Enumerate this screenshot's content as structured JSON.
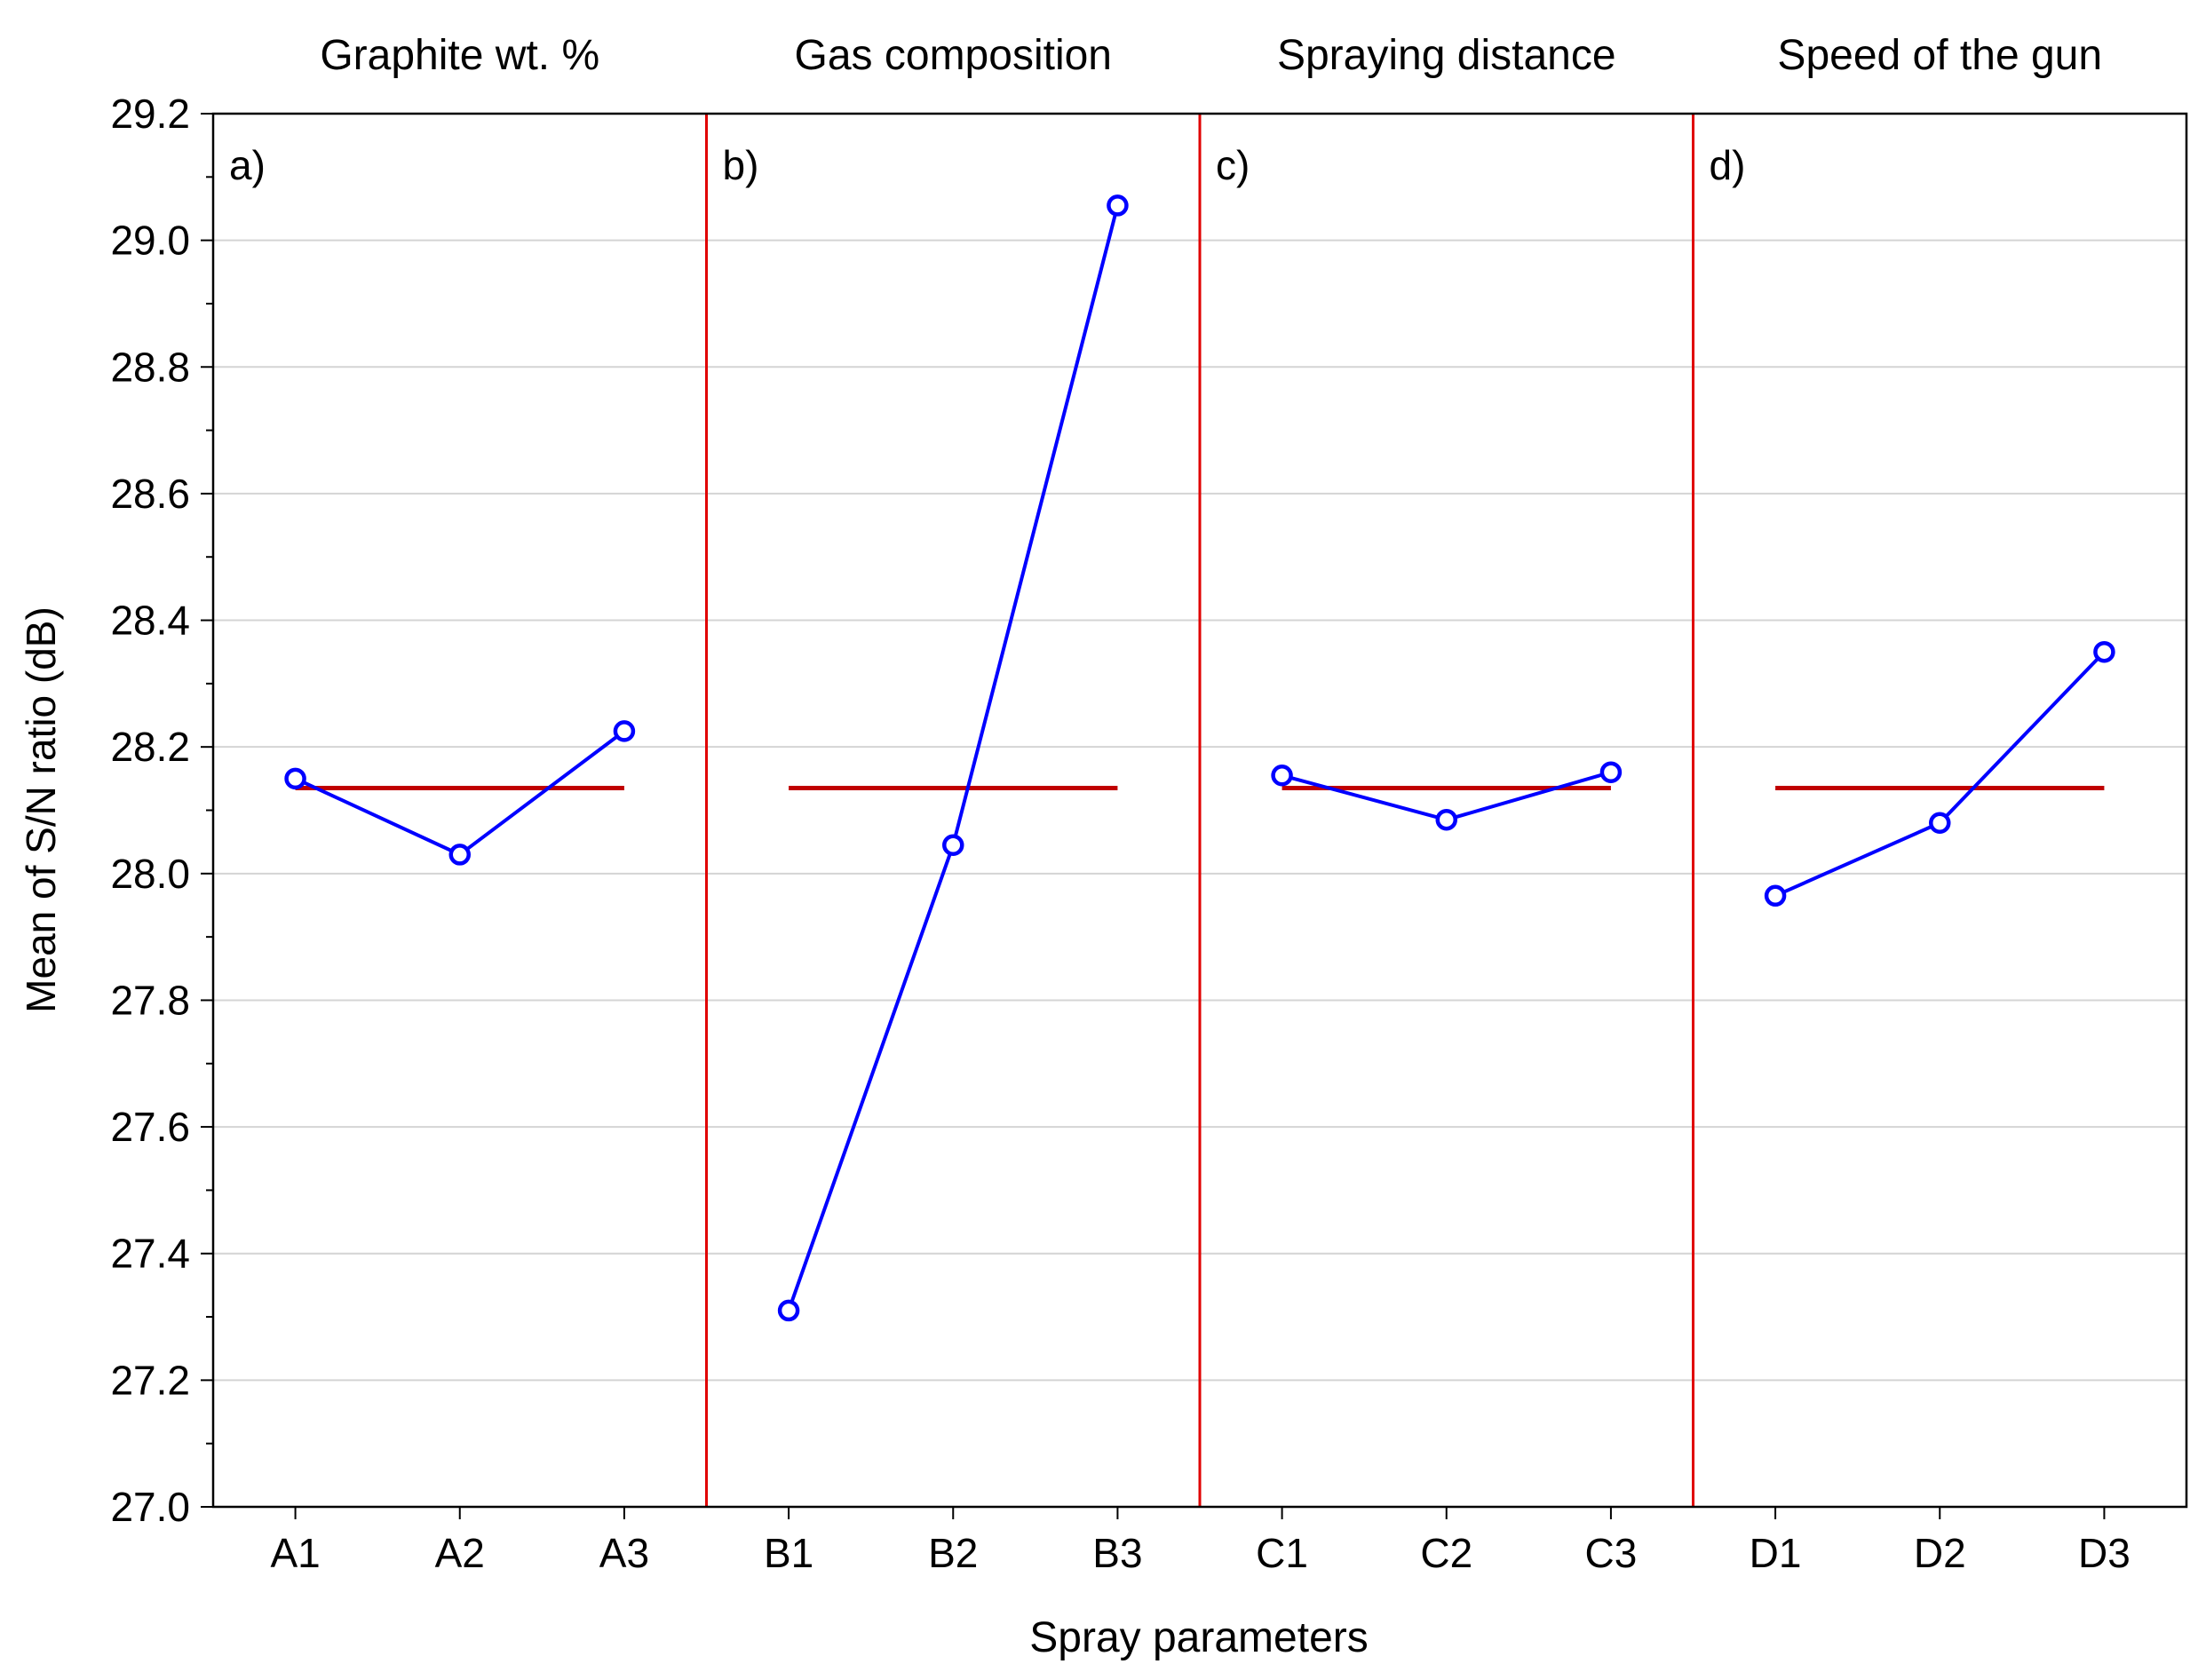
{
  "chart_data": {
    "type": "line",
    "ylabel": "Mean of S/N ratio (dB)",
    "xlabel": "Spray parameters",
    "ylim": [
      27.0,
      29.2
    ],
    "yticks": [
      27.0,
      27.2,
      27.4,
      27.6,
      27.8,
      28.0,
      28.2,
      28.4,
      28.6,
      28.8,
      29.0,
      29.2
    ],
    "ytick_labels": [
      "27.0",
      "27.2",
      "27.4",
      "27.6",
      "27.8",
      "28.0",
      "28.2",
      "28.4",
      "28.6",
      "28.8",
      "29.0",
      "29.2"
    ],
    "grid": true,
    "mean_line_value": 28.135,
    "colors": {
      "series": "#0000ff",
      "mean": "#c00000",
      "divider": "#e00000",
      "grid": "#d4d4d4",
      "axis": "#000000"
    },
    "panels": [
      {
        "letter": "a)",
        "title": "Graphite wt. %",
        "categories": [
          "A1",
          "A2",
          "A3"
        ],
        "values": [
          28.15,
          28.03,
          28.225
        ]
      },
      {
        "letter": "b)",
        "title": "Gas composition",
        "categories": [
          "B1",
          "B2",
          "B3"
        ],
        "values": [
          27.31,
          28.045,
          29.055
        ]
      },
      {
        "letter": "c)",
        "title": "Spraying distance",
        "categories": [
          "C1",
          "C2",
          "C3"
        ],
        "values": [
          28.155,
          28.085,
          28.16
        ]
      },
      {
        "letter": "d)",
        "title": "Speed of the gun",
        "categories": [
          "D1",
          "D2",
          "D3"
        ],
        "values": [
          27.965,
          28.08,
          28.35
        ]
      }
    ]
  }
}
